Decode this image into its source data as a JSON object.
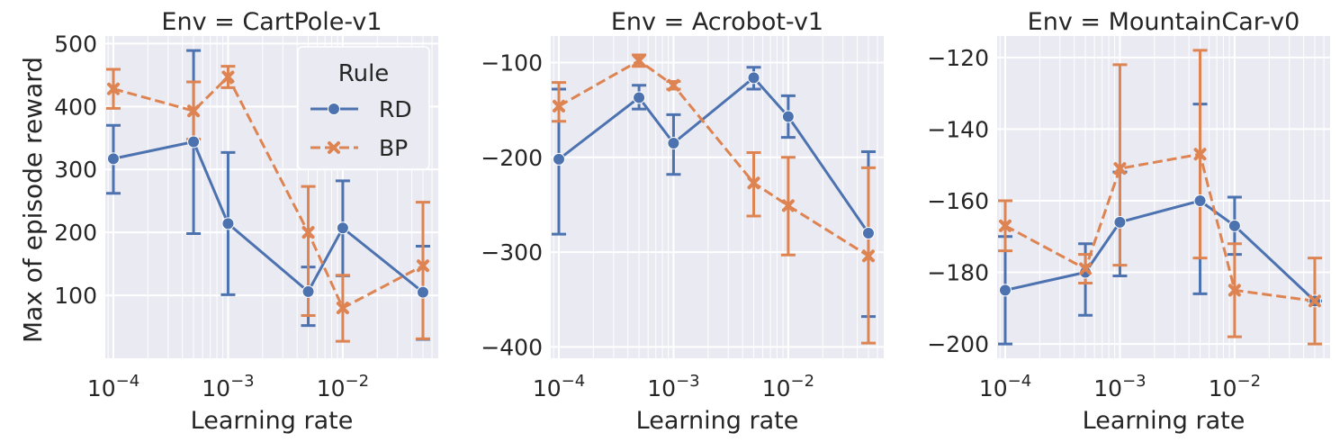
{
  "figure": {
    "ylabel": "Max of episode reward",
    "xlabel": "Learning rate",
    "legend": {
      "title": "Rule",
      "entries": [
        {
          "name": "RD",
          "color": "#4c72b0",
          "marker": "circle",
          "dash": "solid"
        },
        {
          "name": "BP",
          "color": "#dd8452",
          "marker": "x",
          "dash": "dashed"
        }
      ],
      "placement": "upper right of first panel"
    },
    "background": "#eaeaf2",
    "grid": true
  },
  "chart_data": [
    {
      "type": "line",
      "title": "Env = CartPole-v1",
      "xlabel": "Learning rate",
      "ylabel": "Max of episode reward",
      "xscale": "log",
      "xlim": [
        8.5e-05,
        0.068
      ],
      "ylim": [
        0,
        512
      ],
      "yticks": [
        100,
        200,
        300,
        400,
        500
      ],
      "ytick_labels": [
        "100",
        "200",
        "300",
        "400",
        "500"
      ],
      "xticks": [
        0.0001,
        0.001,
        0.01
      ],
      "x": [
        0.0001,
        0.0005,
        0.001,
        0.005,
        0.01,
        0.05
      ],
      "series": [
        {
          "name": "RD",
          "values": [
            317,
            344,
            214,
            106,
            207,
            105
          ],
          "err_low": [
            262,
            198,
            101,
            52,
            131,
            30
          ],
          "err_high": [
            370,
            489,
            327,
            145,
            282,
            178
          ]
        },
        {
          "name": "BP",
          "values": [
            428,
            393,
            447,
            200,
            80,
            147
          ],
          "err_low": [
            397,
            348,
            430,
            68,
            27,
            31
          ],
          "err_high": [
            459,
            439,
            464,
            273,
            132,
            248
          ]
        }
      ]
    },
    {
      "type": "line",
      "title": "Env = Acrobot-v1",
      "xlabel": "Learning rate",
      "ylabel": "",
      "xscale": "log",
      "xlim": [
        8.5e-05,
        0.068
      ],
      "ylim": [
        -412,
        -72
      ],
      "yticks": [
        -400,
        -300,
        -200,
        -100
      ],
      "ytick_labels": [
        "−400",
        "−300",
        "−200",
        "−100"
      ],
      "xticks": [
        0.0001,
        0.001,
        0.01
      ],
      "x": [
        0.0001,
        0.0005,
        0.001,
        0.005,
        0.01,
        0.05
      ],
      "series": [
        {
          "name": "RD",
          "values": [
            -202,
            -137,
            -185,
            -116,
            -157,
            -280
          ],
          "err_low": [
            -281,
            -149,
            -218,
            -128,
            -179,
            -368
          ],
          "err_high": [
            -128,
            -124,
            -155,
            -105,
            -135,
            -194
          ]
        },
        {
          "name": "BP",
          "values": [
            -146,
            -98,
            -124,
            -227,
            -251,
            -304
          ],
          "err_low": [
            -162,
            -104,
            -128,
            -262,
            -303,
            -396
          ],
          "err_high": [
            -121,
            -92,
            -120,
            -195,
            -200,
            -211
          ]
        }
      ]
    },
    {
      "type": "line",
      "title": "Env = MountainCar-v0",
      "xlabel": "Learning rate",
      "ylabel": "",
      "xscale": "log",
      "xlim": [
        8.5e-05,
        0.068
      ],
      "ylim": [
        -204,
        -114
      ],
      "yticks": [
        -200,
        -180,
        -160,
        -140,
        -120
      ],
      "ytick_labels": [
        "−200",
        "−180",
        "−160",
        "−140",
        "−120"
      ],
      "xticks": [
        0.0001,
        0.001,
        0.01
      ],
      "x": [
        0.0001,
        0.0005,
        0.001,
        0.005,
        0.01,
        0.05
      ],
      "series": [
        {
          "name": "RD",
          "values": [
            -185,
            -180,
            -166,
            -160,
            -167,
            -188
          ],
          "err_low": [
            -200,
            -192,
            -181,
            -186,
            -175,
            -188
          ],
          "err_high": [
            -170,
            -172,
            -152,
            -133,
            -159,
            -188
          ]
        },
        {
          "name": "BP",
          "values": [
            -167,
            -179,
            -151,
            -147,
            -185,
            -188
          ],
          "err_low": [
            -174,
            -183,
            -178,
            -176,
            -198,
            -200
          ],
          "err_high": [
            -160,
            -175,
            -122,
            -118,
            -172,
            -176
          ]
        }
      ]
    }
  ]
}
